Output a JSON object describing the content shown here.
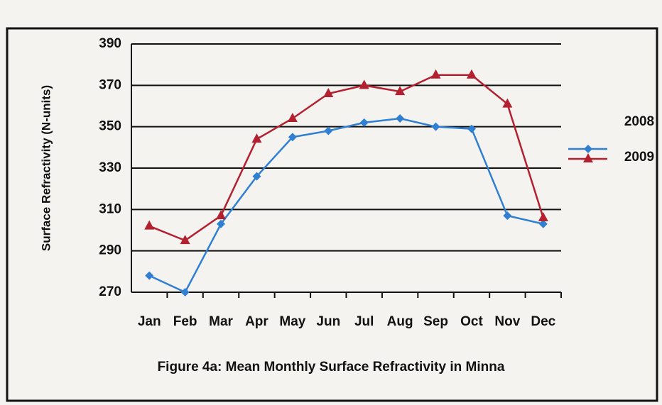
{
  "chart_data": {
    "type": "line",
    "title": "Figure 4a: Mean Monthly Surface Refractivity in Minna",
    "y_label": "Surface Refractivity (N-units)",
    "categories": [
      "Jan",
      "Feb",
      "Mar",
      "Apr",
      "May",
      "Jun",
      "Jul",
      "Aug",
      "Sep",
      "Oct",
      "Nov",
      "Dec"
    ],
    "series": [
      {
        "name": "2008",
        "color": "#2f7fd2",
        "marker": "diamond",
        "values": [
          278,
          270,
          303,
          326,
          345,
          348,
          352,
          354,
          350,
          349,
          307,
          303
        ]
      },
      {
        "name": "2009",
        "color": "#b3202f",
        "marker": "triangle",
        "values": [
          302,
          295,
          307,
          344,
          354,
          366,
          370,
          367,
          375,
          375,
          361,
          306
        ]
      }
    ],
    "ylim": [
      270,
      390
    ],
    "yticks": [
      270,
      290,
      310,
      330,
      350,
      370,
      390
    ],
    "grid": true,
    "legend": "right"
  }
}
